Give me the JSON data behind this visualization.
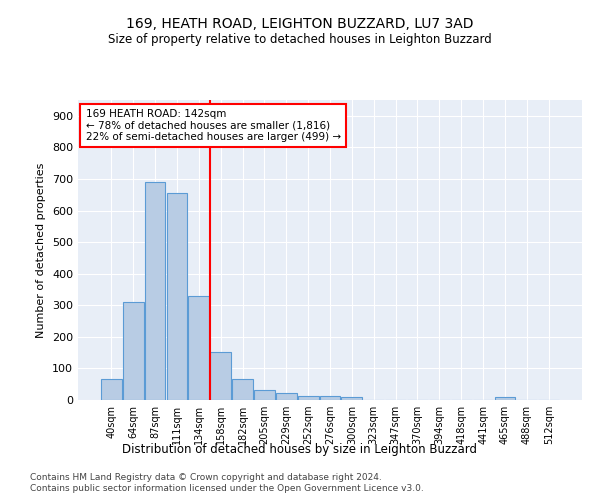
{
  "title1": "169, HEATH ROAD, LEIGHTON BUZZARD, LU7 3AD",
  "title2": "Size of property relative to detached houses in Leighton Buzzard",
  "xlabel": "Distribution of detached houses by size in Leighton Buzzard",
  "ylabel": "Number of detached properties",
  "footer1": "Contains HM Land Registry data © Crown copyright and database right 2024.",
  "footer2": "Contains public sector information licensed under the Open Government Licence v3.0.",
  "annotation_line1": "169 HEATH ROAD: 142sqm",
  "annotation_line2": "← 78% of detached houses are smaller (1,816)",
  "annotation_line3": "22% of semi-detached houses are larger (499) →",
  "bar_color": "#b8cce4",
  "bar_edge_color": "#5b9bd5",
  "vline_color": "red",
  "background_color": "#e8eef7",
  "categories": [
    "40sqm",
    "64sqm",
    "87sqm",
    "111sqm",
    "134sqm",
    "158sqm",
    "182sqm",
    "205sqm",
    "229sqm",
    "252sqm",
    "276sqm",
    "300sqm",
    "323sqm",
    "347sqm",
    "370sqm",
    "394sqm",
    "418sqm",
    "441sqm",
    "465sqm",
    "488sqm",
    "512sqm"
  ],
  "values": [
    65,
    310,
    690,
    655,
    330,
    153,
    68,
    33,
    22,
    12,
    12,
    8,
    0,
    0,
    0,
    0,
    0,
    0,
    10,
    0,
    0
  ],
  "vline_position": 4.5,
  "ylim": [
    0,
    950
  ],
  "yticks": [
    0,
    100,
    200,
    300,
    400,
    500,
    600,
    700,
    800,
    900
  ]
}
